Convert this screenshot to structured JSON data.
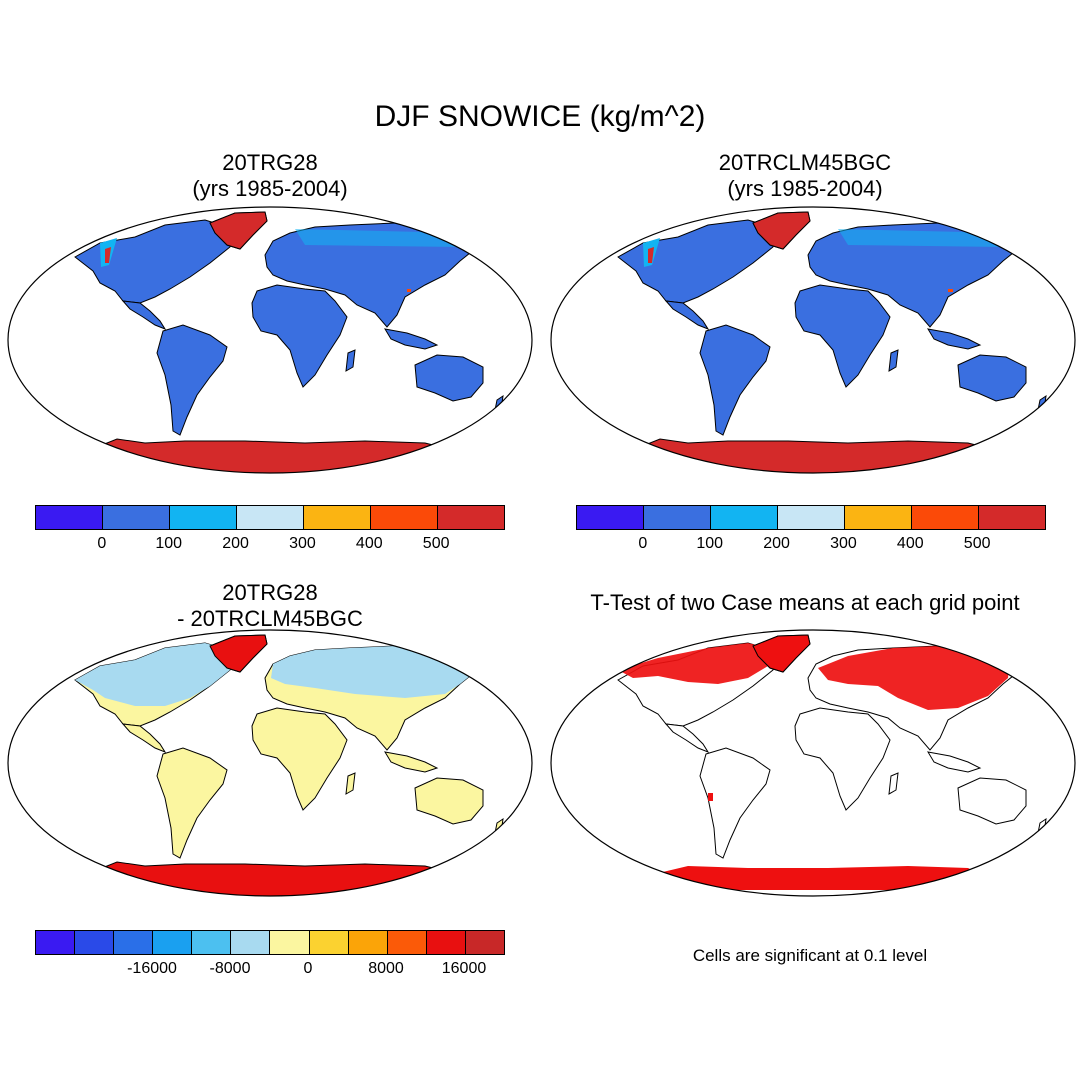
{
  "title": "DJF SNOWICE (kg/m^2)",
  "panels": [
    {
      "title_line1": "20TRG28",
      "title_line2": "(yrs 1985-2004)",
      "kind": "field"
    },
    {
      "title_line1": "20TRCLM45BGC",
      "title_line2": "(yrs 1985-2004)",
      "kind": "field"
    },
    {
      "title_line1": "20TRG28",
      "title_line2": "- 20TRCLM45BGC",
      "kind": "difference"
    },
    {
      "title_line1": "T-Test of two Case means at each grid point",
      "title_line2": "",
      "kind": "significance"
    }
  ],
  "colorbars": {
    "field": {
      "colors": [
        "#3a1af2",
        "#3a6fe0",
        "#12b4f2",
        "#c8e6f5",
        "#fbb412",
        "#fb4a08",
        "#d42a2a"
      ],
      "tick_labels": [
        "0",
        "100",
        "200",
        "300",
        "400",
        "500"
      ]
    },
    "difference": {
      "colors": [
        "#3a1af2",
        "#2a4ae8",
        "#2a6fe8",
        "#1aa0f0",
        "#4cc0f0",
        "#a8daf0",
        "#fbf6a0",
        "#fbd230",
        "#fba408",
        "#fb5a08",
        "#e81010",
        "#c82828"
      ],
      "tick_labels": [
        "-16000",
        "-8000",
        "0",
        "8000",
        "16000"
      ]
    }
  },
  "significance_note": "Cells are significant at 0.1 level"
}
